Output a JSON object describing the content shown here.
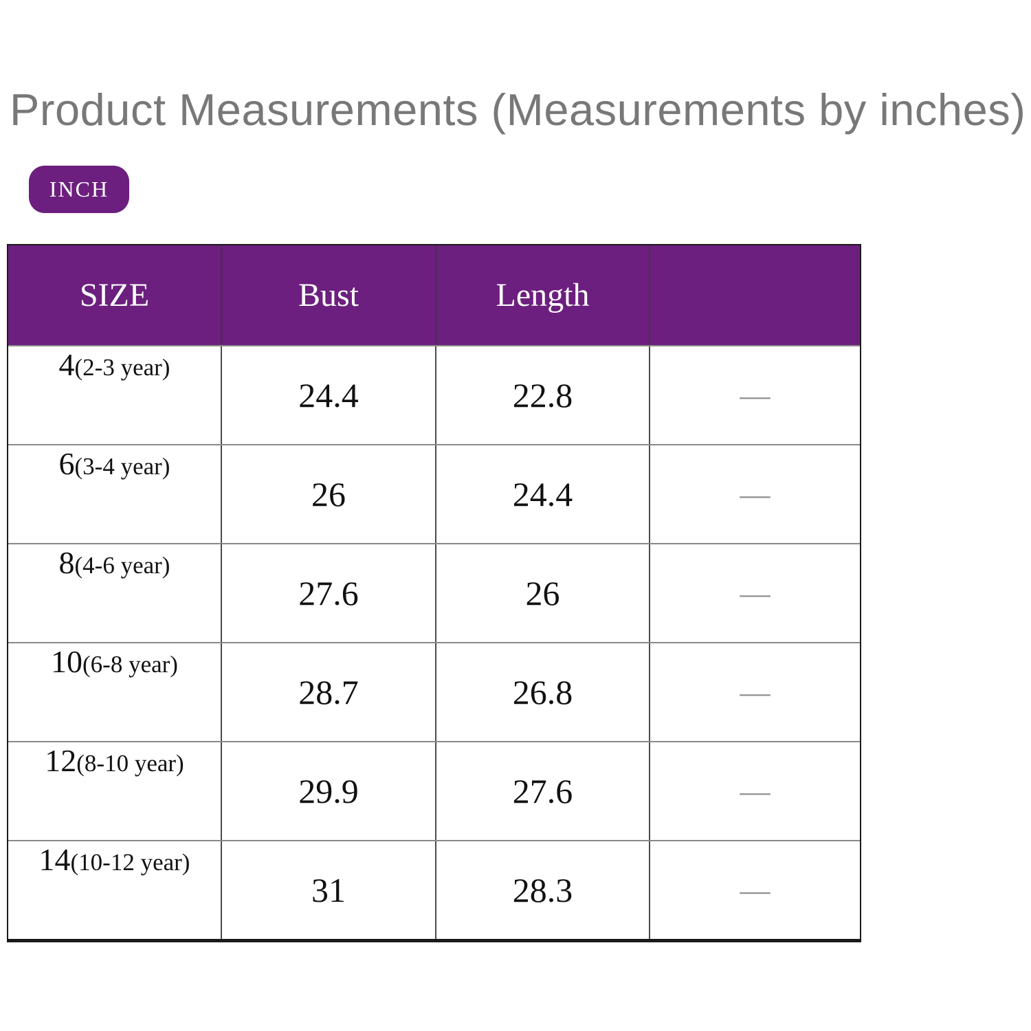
{
  "page": {
    "title": "Product Measurements (Measurements by inches)",
    "unit_badge_label": "INCH"
  },
  "colors": {
    "accent_purple": "#6C1F7E",
    "title_gray": "#787878",
    "row_divider_gray": "#888888",
    "dash_gray": "#8f8f8f"
  },
  "chart_data": {
    "type": "table",
    "title": "Product Measurements (Measurements by inches)",
    "unit": "INCH",
    "columns": [
      "SIZE",
      "Bust",
      "Length",
      ""
    ],
    "rows": [
      {
        "size": "4",
        "age": "(2-3 year)",
        "bust": "24.4",
        "length": "22.8",
        "extra": "—"
      },
      {
        "size": "6",
        "age": "(3-4 year)",
        "bust": "26",
        "length": "24.4",
        "extra": "—"
      },
      {
        "size": "8",
        "age": "(4-6 year)",
        "bust": "27.6",
        "length": "26",
        "extra": "—"
      },
      {
        "size": "10",
        "age": "(6-8 year)",
        "bust": "28.7",
        "length": "26.8",
        "extra": "—"
      },
      {
        "size": "12",
        "age": "(8-10 year)",
        "bust": "29.9",
        "length": "27.6",
        "extra": "—"
      },
      {
        "size": "14",
        "age": "(10-12 year)",
        "bust": "31",
        "length": "28.3",
        "extra": "—"
      }
    ]
  }
}
